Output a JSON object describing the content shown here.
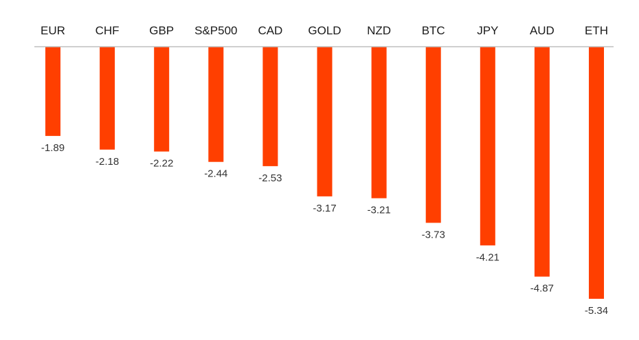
{
  "chart_data": {
    "type": "bar",
    "orientation": "vertical",
    "categories": [
      "EUR",
      "CHF",
      "GBP",
      "S&P500",
      "CAD",
      "GOLD",
      "NZD",
      "BTC",
      "JPY",
      "AUD",
      "ETH"
    ],
    "values": [
      -1.89,
      -2.18,
      -2.22,
      -2.44,
      -2.53,
      -3.17,
      -3.21,
      -3.73,
      -4.21,
      -4.87,
      -5.34
    ],
    "data_labels": [
      "-1.89",
      "-2.18",
      "-2.22",
      "-2.44",
      "-2.53",
      "-3.17",
      "-3.21",
      "-3.73",
      "-4.21",
      "-4.87",
      "-5.34"
    ],
    "category_label_position": "top",
    "title": "",
    "xlabel": "",
    "ylabel": "",
    "ylim": [
      -5.34,
      0
    ],
    "grid": false,
    "legend": "none",
    "colors": {
      "bar": "#ff3f00",
      "axis": "#bfbfbf",
      "text": "#1a1a1a"
    }
  }
}
